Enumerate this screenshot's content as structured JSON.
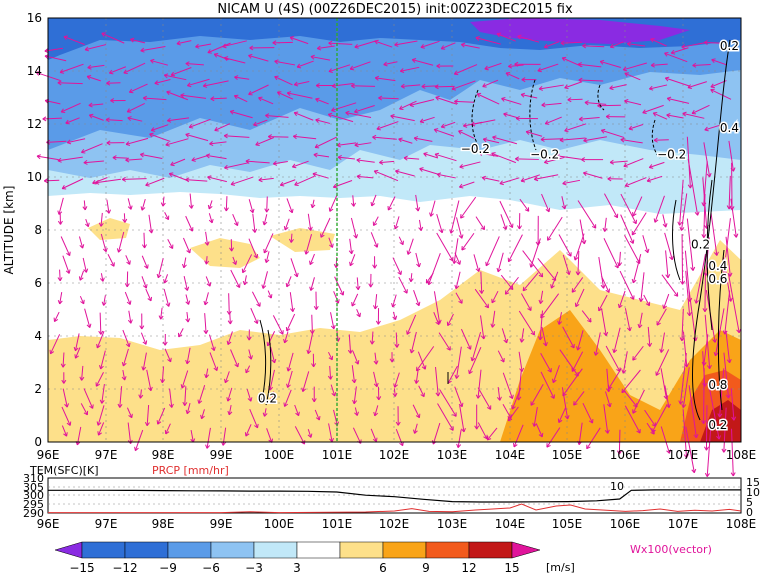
{
  "title": "NICAM U (4S) (00Z26DEC2015) init:00Z23DEC2015 fix",
  "colors": {
    "cb_m15": "#8a2be2",
    "cb_m12": "#2f6fd6",
    "cb_m9": "#5a9be8",
    "cb_m6": "#8ec3f2",
    "cb_m3": "#c1e8f8",
    "cb_0": "#ffffff",
    "cb_3": "#fde08a",
    "cb_6": "#f9a418",
    "cb_9": "#f25a1c",
    "cb_12": "#c21818",
    "cb_15": "#e0149b",
    "vector": "#e0149b",
    "prcp": "#e03030",
    "marker_line": "#2eaa2e"
  },
  "chart_data": [
    {
      "type": "heatmap",
      "title": "NICAM U (4S) (00Z26DEC2015) init:00Z23DEC2015 fix",
      "ylabel": "ALTITUDE [km]",
      "xlim": [
        96,
        108
      ],
      "ylim": [
        0,
        16
      ],
      "x_ticks": [
        "96E",
        "97E",
        "98E",
        "99E",
        "100E",
        "101E",
        "102E",
        "103E",
        "104E",
        "105E",
        "106E",
        "107E",
        "108E"
      ],
      "y_ticks": [
        "0",
        "2",
        "4",
        "6",
        "8",
        "10",
        "12",
        "14",
        "16"
      ],
      "grid": true,
      "marker_line_x": 101,
      "contour_labels": [
        {
          "text": "0.2",
          "lon": 107.8,
          "alt": 14.8
        },
        {
          "text": "0.4",
          "lon": 107.8,
          "alt": 11.7
        },
        {
          "text": "−0.2",
          "lon": 103.4,
          "alt": 10.9
        },
        {
          "text": "−0.2",
          "lon": 104.6,
          "alt": 10.7
        },
        {
          "text": "−0.2",
          "lon": 106.8,
          "alt": 10.7
        },
        {
          "text": "0.2",
          "lon": 107.3,
          "alt": 7.3
        },
        {
          "text": "0.4",
          "lon": 107.6,
          "alt": 6.5
        },
        {
          "text": "0.6",
          "lon": 107.6,
          "alt": 6.0
        },
        {
          "text": "0.2",
          "lon": 99.8,
          "alt": 1.5
        },
        {
          "text": "0.8",
          "lon": 107.6,
          "alt": 2.0
        },
        {
          "text": "0.2",
          "lon": 107.6,
          "alt": 0.5
        }
      ]
    },
    {
      "type": "line",
      "legend": [
        {
          "label": "TEM(SFC)[K]"
        },
        {
          "label": "PRCP [mm/hr]"
        }
      ],
      "left_ticks": [
        "310",
        "305",
        "300",
        "295",
        "290"
      ],
      "right_ticks": [
        "15",
        "10",
        "5",
        "0"
      ],
      "x_ticks": [
        "96E",
        "97E",
        "98E",
        "99E",
        "100E",
        "101E",
        "102E",
        "103E",
        "104E",
        "105E",
        "106E",
        "107E",
        "108E"
      ],
      "label_10": "10",
      "tem_k": [
        [
          96,
          303
        ],
        [
          96.5,
          303
        ],
        [
          97,
          303
        ],
        [
          97.5,
          302.9
        ],
        [
          98,
          302.8
        ],
        [
          98.5,
          302.7
        ],
        [
          99,
          302.6
        ],
        [
          99.5,
          302.5
        ],
        [
          100,
          302.5
        ],
        [
          100.5,
          302.4
        ],
        [
          101,
          302
        ],
        [
          101.5,
          300.2
        ],
        [
          102,
          299.3
        ],
        [
          102.5,
          297.8
        ],
        [
          103,
          296.5
        ],
        [
          103.5,
          296.3
        ],
        [
          104,
          296.3
        ],
        [
          104.5,
          296.4
        ],
        [
          105,
          296.5
        ],
        [
          105.5,
          297
        ],
        [
          105.9,
          298
        ],
        [
          106.1,
          303
        ],
        [
          106.5,
          303.2
        ],
        [
          107,
          303.2
        ],
        [
          107.5,
          303.2
        ],
        [
          108,
          303.2
        ]
      ],
      "prcp": [
        [
          96,
          0.2
        ],
        [
          99,
          0.2
        ],
        [
          99.5,
          0.6
        ],
        [
          100,
          0.2
        ],
        [
          101.5,
          0.5
        ],
        [
          102,
          1.0
        ],
        [
          102.3,
          2.2
        ],
        [
          102.6,
          0.8
        ],
        [
          103,
          0.6
        ],
        [
          103.4,
          1.5
        ],
        [
          103.7,
          2.0
        ],
        [
          104,
          2.5
        ],
        [
          104.2,
          4.5
        ],
        [
          104.45,
          1.5
        ],
        [
          104.8,
          3.5
        ],
        [
          105.05,
          4.0
        ],
        [
          105.3,
          2.0
        ],
        [
          105.6,
          1.5
        ],
        [
          106,
          0.8
        ],
        [
          106.3,
          1.2
        ],
        [
          106.6,
          2.0
        ],
        [
          106.9,
          0.8
        ],
        [
          107.2,
          1.4
        ],
        [
          107.5,
          1.0
        ],
        [
          107.8,
          1.8
        ],
        [
          108,
          1.0
        ]
      ]
    },
    {
      "type": "colorbar",
      "tick_labels": [
        "−15",
        "−12",
        "−9",
        "−6",
        "−3",
        "3",
        "6",
        "9",
        "12",
        "15"
      ],
      "unit": "[m/s]",
      "vector_label": "Wx100(vector)"
    }
  ]
}
